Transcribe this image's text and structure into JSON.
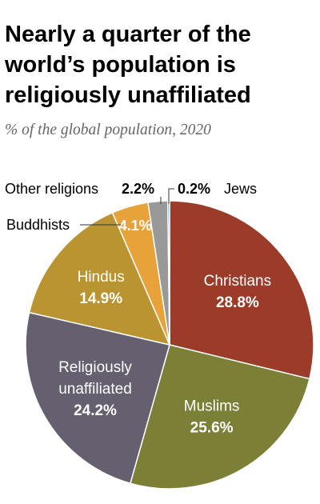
{
  "title": "Nearly a quarter of the world’s population is religiously unaffiliated",
  "subtitle": "% of the global population, 2020",
  "chart_data": {
    "type": "pie",
    "title": "Nearly a quarter of the world’s population is religiously unaffiliated",
    "subtitle": "% of the global population, 2020",
    "unit": "%",
    "slices": [
      {
        "name": "Christians",
        "value": 28.8,
        "value_label": "28.8%",
        "color": "#9b3c2a",
        "label_color": "#ffffff"
      },
      {
        "name": "Muslims",
        "value": 25.6,
        "value_label": "25.6%",
        "color": "#7c7f36",
        "label_color": "#ffffff"
      },
      {
        "name": "Religiously unaffiliated",
        "name_lines": [
          "Religiously",
          "unaffiliated"
        ],
        "value": 24.2,
        "value_label": "24.2%",
        "color": "#655f6f",
        "label_color": "#ffffff"
      },
      {
        "name": "Hindus",
        "value": 14.9,
        "value_label": "14.9%",
        "color": "#ba9430",
        "label_color": "#ffffff"
      },
      {
        "name": "Buddhists",
        "value": 4.1,
        "value_label": "4.1%",
        "color": "#e8a23a",
        "label_color": "#ffffff"
      },
      {
        "name": "Other religions",
        "value": 2.2,
        "value_label": "2.2%",
        "color": "#999999",
        "label_color": "#000000"
      },
      {
        "name": "Jews",
        "value": 0.2,
        "value_label": "0.2%",
        "color": "#3a7dbf",
        "label_color": "#000000"
      }
    ]
  }
}
